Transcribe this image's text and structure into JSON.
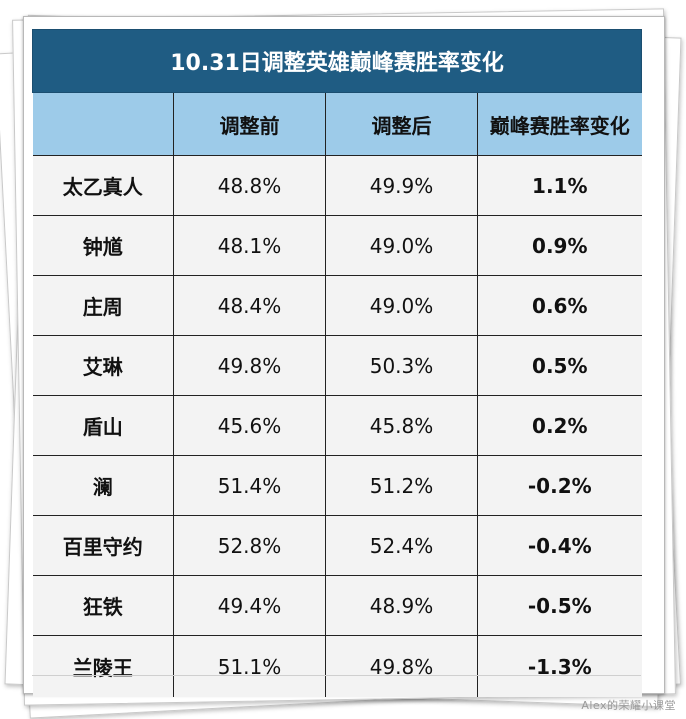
{
  "table": {
    "title": "10.31日调整英雄巅峰赛胜率变化",
    "headers": [
      "",
      "调整前",
      "调整后",
      "巅峰赛胜率变化"
    ],
    "rows": [
      {
        "hero": "太乙真人",
        "before": "48.8%",
        "after": "49.9%",
        "change": "1.1%"
      },
      {
        "hero": "钟馗",
        "before": "48.1%",
        "after": "49.0%",
        "change": "0.9%"
      },
      {
        "hero": "庄周",
        "before": "48.4%",
        "after": "49.0%",
        "change": "0.6%"
      },
      {
        "hero": "艾琳",
        "before": "49.8%",
        "after": "50.3%",
        "change": "0.5%"
      },
      {
        "hero": "盾山",
        "before": "45.6%",
        "after": "45.8%",
        "change": "0.2%"
      },
      {
        "hero": "澜",
        "before": "51.4%",
        "after": "51.2%",
        "change": "-0.2%"
      },
      {
        "hero": "百里守约",
        "before": "52.8%",
        "after": "52.4%",
        "change": "-0.4%"
      },
      {
        "hero": "狂铁",
        "before": "49.4%",
        "after": "48.9%",
        "change": "-0.5%"
      },
      {
        "hero": "兰陵王",
        "before": "51.1%",
        "after": "49.8%",
        "change": "-1.3%"
      }
    ]
  },
  "colors": {
    "title_bg": "#1f5c83",
    "header_bg": "#9dcbe9",
    "row_bg": "#f3f3f3",
    "positive": "#b2191d",
    "negative": "#2a8a5f"
  },
  "watermark": "Alex的荣耀小课堂"
}
